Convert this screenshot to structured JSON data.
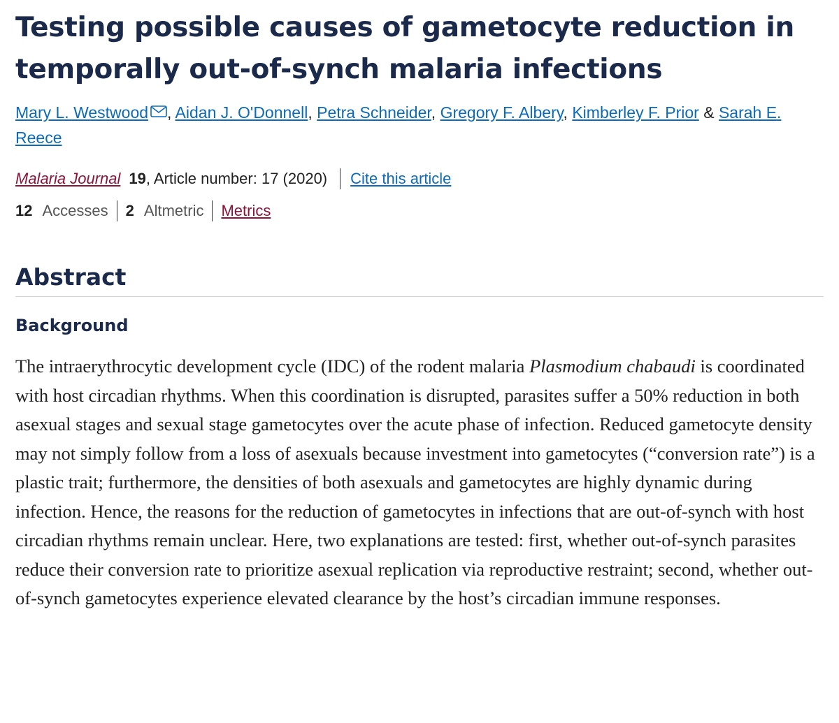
{
  "article": {
    "title": "Testing possible causes of gametocyte reduction in temporally out-of-synch malaria infections",
    "authors": [
      {
        "name": "Mary L. Westwood"
      },
      {
        "name": "Aidan J. O'Donnell"
      },
      {
        "name": "Petra Schneider"
      },
      {
        "name": "Gregory F. Albery"
      },
      {
        "name": "Kimberley F. Prior"
      },
      {
        "name": "Sarah E. Reece"
      }
    ],
    "author_separator": ", ",
    "author_final_separator": " & ",
    "email_icon": "envelope-icon"
  },
  "citation": {
    "journal": "Malaria Journal",
    "volume": "19",
    "article_number": ", Article number: 17 (2020)",
    "cite_link": "Cite this article"
  },
  "metrics": {
    "accesses_count": "12",
    "accesses_label": "Accesses",
    "altmetric_count": "2",
    "altmetric_label": "Altmetric",
    "metrics_link": "Metrics"
  },
  "abstract": {
    "heading": "Abstract",
    "section_heading": "Background",
    "text_1": "The intraerythrocytic development cycle (IDC) of the rodent malaria ",
    "species": "Plasmodium chabaudi",
    "text_2": " is coordinated with host circadian rhythms. When this coordination is disrupted, parasites suffer a 50% reduction in both asexual stages and sexual stage gametocytes over the acute phase of infection. Reduced gametocyte density may not simply follow from a loss of asexuals because investment into gametocytes (“conversion rate”) is a plastic trait; furthermore, the densities of both asexuals and gametocytes are highly dynamic during infection. Hence, the reasons for the reduction of gametocytes in infections that are out-of-synch with host circadian rhythms remain unclear. Here, two explanations are tested: first, whether out-of-synch parasites reduce their conversion rate to prioritize asexual replication via reproductive restraint; second, whether out-of-synch gametocytes experience elevated clearance by the host’s circadian immune responses."
  },
  "colors": {
    "title": "#1b2a4a",
    "link": "#0c6bb8",
    "journal": "#8a1538"
  }
}
